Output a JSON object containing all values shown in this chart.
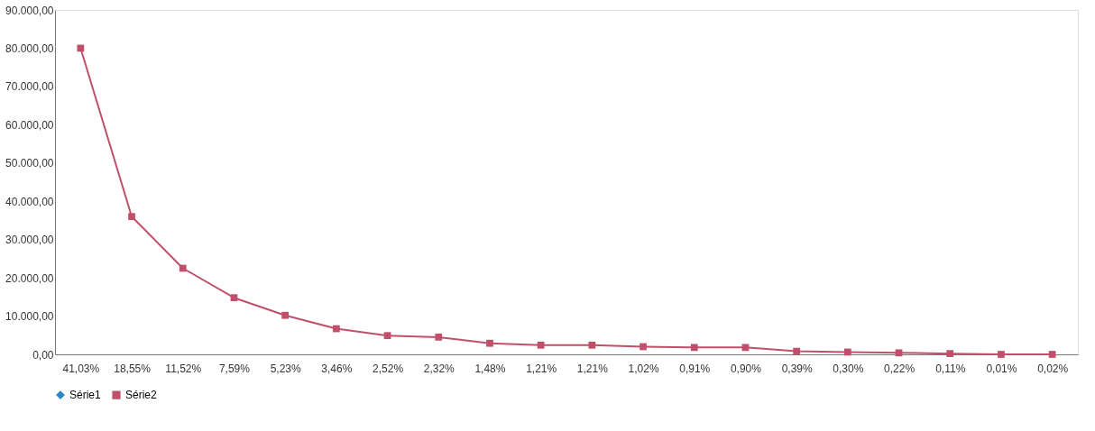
{
  "chart_data": {
    "type": "line",
    "categories": [
      "41,03%",
      "18,55%",
      "11,52%",
      "7,59%",
      "5,23%",
      "3,46%",
      "2,52%",
      "2,32%",
      "1,48%",
      "1,21%",
      "1,21%",
      "1,02%",
      "0,91%",
      "0,90%",
      "0,39%",
      "0,30%",
      "0,22%",
      "0,11%",
      "0,01%",
      "0,02%"
    ],
    "series": [
      {
        "name": "Série1",
        "color": "#2e86c1",
        "marker": "diamond",
        "values": [
          null,
          null,
          null,
          null,
          null,
          null,
          null,
          null,
          null,
          null,
          null,
          null,
          null,
          null,
          null,
          null,
          null,
          null,
          null,
          null
        ]
      },
      {
        "name": "Série2",
        "color": "#c0506a",
        "marker": "square",
        "values": [
          80000,
          36000,
          22500,
          14800,
          10200,
          6700,
          4900,
          4500,
          2900,
          2400,
          2400,
          2000,
          1800,
          1800,
          800,
          600,
          400,
          200,
          0,
          0
        ]
      }
    ],
    "ylim": [
      0,
      90000
    ],
    "yticks": [
      {
        "value": 0,
        "label": "0,00"
      },
      {
        "value": 10000,
        "label": "10.000,00"
      },
      {
        "value": 20000,
        "label": "20.000,00"
      },
      {
        "value": 30000,
        "label": "30.000,00"
      },
      {
        "value": 40000,
        "label": "40.000,00"
      },
      {
        "value": 50000,
        "label": "50.000,00"
      },
      {
        "value": 60000,
        "label": "60.000,00"
      },
      {
        "value": 70000,
        "label": "70.000,00"
      },
      {
        "value": 80000,
        "label": "80.000,00"
      },
      {
        "value": 90000,
        "label": "90.000,00"
      }
    ],
    "grid": false,
    "legend": "bottom",
    "line_style": "solid"
  }
}
